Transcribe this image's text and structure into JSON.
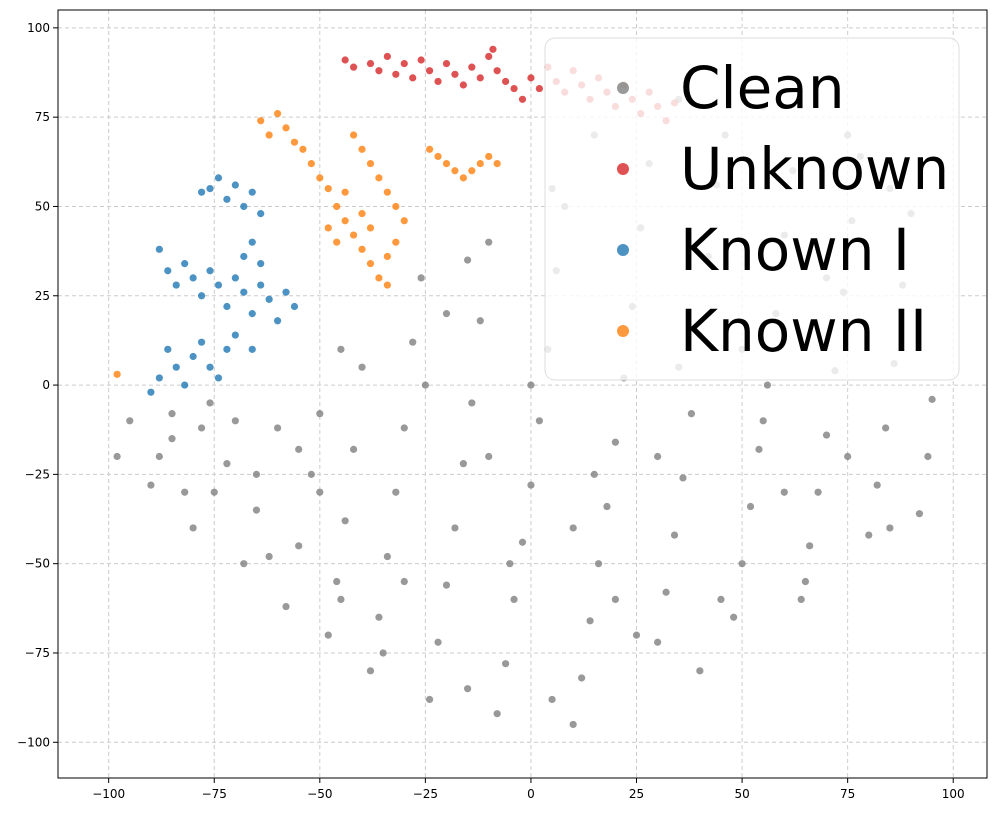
{
  "chart_data": {
    "type": "scatter",
    "title": "",
    "xlabel": "",
    "ylabel": "",
    "xlim": [
      -112,
      108
    ],
    "ylim": [
      -110,
      105
    ],
    "xticks": [
      -100,
      -75,
      -50,
      -25,
      0,
      25,
      50,
      75,
      100
    ],
    "yticks": [
      -100,
      -75,
      -50,
      -25,
      0,
      25,
      50,
      75,
      100
    ],
    "xtick_labels": [
      "−100",
      "−75",
      "−50",
      "−25",
      "0",
      "25",
      "50",
      "75",
      "100"
    ],
    "ytick_labels": [
      "−100",
      "−75",
      "−50",
      "−25",
      "0",
      "25",
      "50",
      "75",
      "100"
    ],
    "grid": true,
    "legend_position": "top-right",
    "series": [
      {
        "name": "Clean",
        "color": "#7f7f7f",
        "points": [
          [
            -98,
            -20
          ],
          [
            -95,
            -10
          ],
          [
            -90,
            -28
          ],
          [
            -85,
            -15
          ],
          [
            -80,
            -40
          ],
          [
            -76,
            -5
          ],
          [
            -72,
            -22
          ],
          [
            -68,
            -50
          ],
          [
            -65,
            -35
          ],
          [
            -60,
            -12
          ],
          [
            -58,
            -62
          ],
          [
            -55,
            -45
          ],
          [
            -52,
            -25
          ],
          [
            -50,
            -8
          ],
          [
            -48,
            -70
          ],
          [
            -46,
            -55
          ],
          [
            -44,
            -38
          ],
          [
            -42,
            -18
          ],
          [
            -40,
            5
          ],
          [
            -38,
            -80
          ],
          [
            -36,
            -65
          ],
          [
            -34,
            -48
          ],
          [
            -32,
            -30
          ],
          [
            -30,
            -12
          ],
          [
            -28,
            12
          ],
          [
            -26,
            30
          ],
          [
            -24,
            -88
          ],
          [
            -22,
            -72
          ],
          [
            -20,
            -56
          ],
          [
            -18,
            -40
          ],
          [
            -16,
            -22
          ],
          [
            -14,
            -5
          ],
          [
            -12,
            18
          ],
          [
            -10,
            40
          ],
          [
            -8,
            -92
          ],
          [
            -6,
            -78
          ],
          [
            -4,
            -60
          ],
          [
            -2,
            -44
          ],
          [
            0,
            -28
          ],
          [
            2,
            -10
          ],
          [
            4,
            10
          ],
          [
            6,
            32
          ],
          [
            8,
            50
          ],
          [
            10,
            -95
          ],
          [
            12,
            -82
          ],
          [
            14,
            -66
          ],
          [
            16,
            -50
          ],
          [
            18,
            -34
          ],
          [
            20,
            -16
          ],
          [
            22,
            2
          ],
          [
            24,
            22
          ],
          [
            26,
            44
          ],
          [
            28,
            62
          ],
          [
            30,
            -72
          ],
          [
            32,
            -58
          ],
          [
            34,
            -42
          ],
          [
            36,
            -26
          ],
          [
            38,
            -8
          ],
          [
            40,
            14
          ],
          [
            42,
            36
          ],
          [
            44,
            56
          ],
          [
            46,
            70
          ],
          [
            48,
            -65
          ],
          [
            50,
            -50
          ],
          [
            52,
            -34
          ],
          [
            54,
            -18
          ],
          [
            56,
            0
          ],
          [
            58,
            20
          ],
          [
            60,
            42
          ],
          [
            62,
            60
          ],
          [
            64,
            -60
          ],
          [
            66,
            -45
          ],
          [
            68,
            -30
          ],
          [
            70,
            -14
          ],
          [
            72,
            4
          ],
          [
            74,
            26
          ],
          [
            76,
            46
          ],
          [
            78,
            64
          ],
          [
            80,
            -42
          ],
          [
            82,
            -28
          ],
          [
            84,
            -12
          ],
          [
            86,
            6
          ],
          [
            88,
            28
          ],
          [
            90,
            48
          ],
          [
            92,
            -36
          ],
          [
            94,
            -20
          ],
          [
            95,
            -4
          ],
          [
            -30,
            -55
          ],
          [
            -10,
            -20
          ],
          [
            10,
            -40
          ],
          [
            30,
            -20
          ],
          [
            50,
            10
          ],
          [
            70,
            30
          ],
          [
            -50,
            -30
          ],
          [
            -70,
            -10
          ],
          [
            -20,
            20
          ],
          [
            0,
            0
          ],
          [
            20,
            -60
          ],
          [
            40,
            -80
          ],
          [
            60,
            -30
          ],
          [
            -88,
            -20
          ],
          [
            -82,
            -30
          ],
          [
            -78,
            -12
          ],
          [
            -62,
            -48
          ],
          [
            -45,
            -60
          ],
          [
            -35,
            -75
          ],
          [
            -15,
            -85
          ],
          [
            5,
            -88
          ],
          [
            25,
            -70
          ],
          [
            45,
            -60
          ],
          [
            65,
            -55
          ],
          [
            85,
            -40
          ],
          [
            -25,
            0
          ],
          [
            -15,
            35
          ],
          [
            5,
            55
          ],
          [
            15,
            70
          ],
          [
            35,
            80
          ],
          [
            55,
            78
          ],
          [
            75,
            70
          ],
          [
            85,
            55
          ],
          [
            -5,
            -50
          ],
          [
            15,
            -25
          ],
          [
            35,
            5
          ],
          [
            55,
            -10
          ],
          [
            75,
            -20
          ],
          [
            -45,
            10
          ],
          [
            -55,
            -18
          ],
          [
            -65,
            -25
          ],
          [
            -75,
            -30
          ],
          [
            -85,
            -8
          ]
        ]
      },
      {
        "name": "Unknown",
        "color": "#d62728",
        "points": [
          [
            -44,
            91
          ],
          [
            -42,
            89
          ],
          [
            -38,
            90
          ],
          [
            -36,
            88
          ],
          [
            -34,
            92
          ],
          [
            -32,
            87
          ],
          [
            -30,
            90
          ],
          [
            -28,
            86
          ],
          [
            -26,
            91
          ],
          [
            -24,
            88
          ],
          [
            -22,
            85
          ],
          [
            -20,
            90
          ],
          [
            -18,
            87
          ],
          [
            -16,
            84
          ],
          [
            -14,
            89
          ],
          [
            -12,
            86
          ],
          [
            -10,
            92
          ],
          [
            -8,
            88
          ],
          [
            -6,
            85
          ],
          [
            -4,
            83
          ],
          [
            -2,
            80
          ],
          [
            0,
            86
          ],
          [
            2,
            83
          ],
          [
            4,
            89
          ],
          [
            6,
            85
          ],
          [
            8,
            82
          ],
          [
            10,
            88
          ],
          [
            12,
            84
          ],
          [
            14,
            80
          ],
          [
            16,
            86
          ],
          [
            18,
            82
          ],
          [
            20,
            78
          ],
          [
            22,
            84
          ],
          [
            24,
            80
          ],
          [
            26,
            76
          ],
          [
            28,
            82
          ],
          [
            30,
            78
          ],
          [
            32,
            74
          ],
          [
            34,
            79
          ],
          [
            -9,
            94
          ]
        ]
      },
      {
        "name": "Known I",
        "color": "#1f77b4",
        "points": [
          [
            -88,
            38
          ],
          [
            -86,
            32
          ],
          [
            -84,
            28
          ],
          [
            -82,
            34
          ],
          [
            -80,
            30
          ],
          [
            -78,
            25
          ],
          [
            -76,
            32
          ],
          [
            -74,
            28
          ],
          [
            -72,
            22
          ],
          [
            -70,
            30
          ],
          [
            -68,
            26
          ],
          [
            -66,
            20
          ],
          [
            -64,
            28
          ],
          [
            -62,
            24
          ],
          [
            -60,
            18
          ],
          [
            -58,
            26
          ],
          [
            -56,
            22
          ],
          [
            -68,
            36
          ],
          [
            -66,
            40
          ],
          [
            -64,
            34
          ],
          [
            -86,
            10
          ],
          [
            -84,
            5
          ],
          [
            -82,
            0
          ],
          [
            -80,
            8
          ],
          [
            -78,
            12
          ],
          [
            -76,
            5
          ],
          [
            -74,
            2
          ],
          [
            -88,
            2
          ],
          [
            -90,
            -2
          ],
          [
            -72,
            10
          ],
          [
            -76,
            55
          ],
          [
            -74,
            58
          ],
          [
            -72,
            52
          ],
          [
            -70,
            56
          ],
          [
            -68,
            50
          ],
          [
            -66,
            54
          ],
          [
            -64,
            48
          ],
          [
            -78,
            54
          ],
          [
            -70,
            14
          ],
          [
            -66,
            10
          ]
        ]
      },
      {
        "name": "Known II",
        "color": "#ff7f0e",
        "points": [
          [
            -64,
            74
          ],
          [
            -62,
            70
          ],
          [
            -60,
            76
          ],
          [
            -58,
            72
          ],
          [
            -56,
            68
          ],
          [
            -54,
            66
          ],
          [
            -52,
            62
          ],
          [
            -50,
            58
          ],
          [
            -48,
            55
          ],
          [
            -46,
            50
          ],
          [
            -44,
            46
          ],
          [
            -42,
            42
          ],
          [
            -40,
            38
          ],
          [
            -38,
            34
          ],
          [
            -36,
            30
          ],
          [
            -34,
            28
          ],
          [
            -42,
            70
          ],
          [
            -40,
            66
          ],
          [
            -38,
            62
          ],
          [
            -36,
            58
          ],
          [
            -34,
            54
          ],
          [
            -32,
            50
          ],
          [
            -30,
            46
          ],
          [
            -32,
            40
          ],
          [
            -34,
            36
          ],
          [
            -46,
            40
          ],
          [
            -48,
            44
          ],
          [
            -44,
            54
          ],
          [
            -40,
            48
          ],
          [
            -38,
            44
          ],
          [
            -24,
            66
          ],
          [
            -22,
            64
          ],
          [
            -20,
            62
          ],
          [
            -18,
            60
          ],
          [
            -16,
            58
          ],
          [
            -14,
            60
          ],
          [
            -12,
            62
          ],
          [
            -10,
            64
          ],
          [
            -8,
            62
          ],
          [
            -98,
            3
          ]
        ]
      }
    ]
  }
}
